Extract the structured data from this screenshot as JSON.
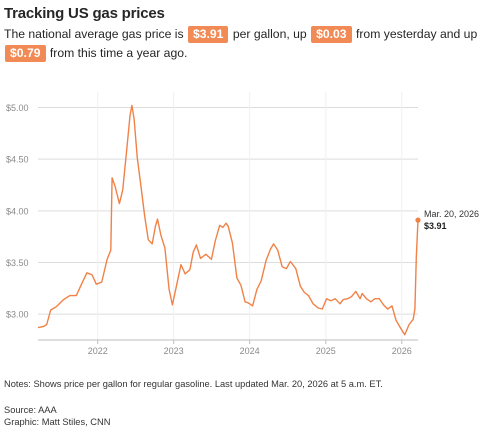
{
  "header": {
    "title": "Tracking US gas prices",
    "subtitle_part1": "The national average gas price is",
    "price_pill": "$3.91",
    "subtitle_part2": "per gallon, up",
    "day_change_pill": "$0.03",
    "subtitle_part3": "from yesterday and up",
    "year_change_pill": "$0.79",
    "subtitle_part4": "from this time a year ago."
  },
  "colors": {
    "accent": "#f18a55",
    "line": "#f08247",
    "grid": "#dddddd",
    "axis_text": "#8a8a8a"
  },
  "chart_data": {
    "type": "line",
    "title": "Tracking US gas prices",
    "xlabel": "",
    "ylabel": "",
    "xlim": [
      "2021-03-20",
      "2026-03-20"
    ],
    "ylim": [
      2.75,
      5.15
    ],
    "x_ticks": [
      "2022",
      "2023",
      "2024",
      "2025",
      "2026"
    ],
    "y_ticks": [
      "$3.00",
      "$3.50",
      "$4.00",
      "$4.50",
      "$5.00"
    ],
    "y_tick_values": [
      3.0,
      3.5,
      4.0,
      4.5,
      5.0
    ],
    "grid": true,
    "series": [
      {
        "x": [
          "2021-03-20",
          "2021-04-15",
          "2021-05-01",
          "2021-05-20",
          "2021-06-15",
          "2021-07-20",
          "2021-08-20",
          "2021-09-20",
          "2021-10-15",
          "2021-11-10",
          "2021-12-05",
          "2021-12-25",
          "2022-01-20",
          "2022-02-15",
          "2022-03-05",
          "2022-03-11",
          "2022-03-25",
          "2022-04-15",
          "2022-05-01",
          "2022-05-20",
          "2022-06-05",
          "2022-06-14",
          "2022-06-25",
          "2022-07-10",
          "2022-07-25",
          "2022-08-15",
          "2022-09-01",
          "2022-09-20",
          "2022-10-05",
          "2022-10-15",
          "2022-11-01",
          "2022-11-20",
          "2022-12-10",
          "2022-12-26",
          "2023-01-15",
          "2023-02-05",
          "2023-02-25",
          "2023-03-20",
          "2023-04-05",
          "2023-04-20",
          "2023-05-10",
          "2023-06-05",
          "2023-07-01",
          "2023-07-20",
          "2023-08-10",
          "2023-08-25",
          "2023-09-10",
          "2023-09-20",
          "2023-10-10",
          "2023-11-01",
          "2023-11-20",
          "2023-12-10",
          "2023-12-25",
          "2024-01-15",
          "2024-02-05",
          "2024-02-25",
          "2024-03-20",
          "2024-04-10",
          "2024-04-25",
          "2024-05-15",
          "2024-06-05",
          "2024-06-25",
          "2024-07-15",
          "2024-08-10",
          "2024-09-01",
          "2024-09-20",
          "2024-10-10",
          "2024-11-01",
          "2024-11-25",
          "2024-12-15",
          "2025-01-05",
          "2025-01-25",
          "2025-02-15",
          "2025-03-10",
          "2025-03-25",
          "2025-04-15",
          "2025-05-05",
          "2025-05-25",
          "2025-06-15",
          "2025-06-25",
          "2025-07-15",
          "2025-08-05",
          "2025-08-25",
          "2025-09-15",
          "2025-10-05",
          "2025-10-25",
          "2025-11-15",
          "2025-12-05",
          "2025-12-25",
          "2026-01-15",
          "2026-02-05",
          "2026-02-25",
          "2026-03-05",
          "2026-03-12",
          "2026-03-20"
        ],
        "values": [
          2.87,
          2.88,
          2.9,
          3.04,
          3.07,
          3.14,
          3.18,
          3.18,
          3.29,
          3.4,
          3.38,
          3.29,
          3.31,
          3.53,
          3.62,
          4.32,
          4.24,
          4.07,
          4.2,
          4.59,
          4.92,
          5.02,
          4.89,
          4.51,
          4.28,
          3.94,
          3.72,
          3.68,
          3.85,
          3.92,
          3.76,
          3.64,
          3.24,
          3.09,
          3.28,
          3.48,
          3.39,
          3.43,
          3.6,
          3.67,
          3.54,
          3.58,
          3.53,
          3.71,
          3.86,
          3.84,
          3.88,
          3.85,
          3.69,
          3.35,
          3.28,
          3.12,
          3.11,
          3.08,
          3.24,
          3.32,
          3.52,
          3.63,
          3.68,
          3.62,
          3.46,
          3.44,
          3.51,
          3.44,
          3.27,
          3.21,
          3.18,
          3.1,
          3.06,
          3.05,
          3.15,
          3.13,
          3.15,
          3.1,
          3.14,
          3.15,
          3.17,
          3.22,
          3.15,
          3.2,
          3.15,
          3.12,
          3.15,
          3.15,
          3.09,
          3.05,
          3.08,
          2.94,
          2.87,
          2.8,
          2.9,
          2.95,
          3.05,
          3.55,
          3.91
        ]
      }
    ],
    "annotation": {
      "date_label": "Mar. 20, 2026",
      "value_label": "$3.91"
    }
  },
  "footer": {
    "notes": "Notes: Shows price per gallon for regular gasoline. Last updated Mar. 20, 2026 at 5 a.m. ET.",
    "source": "Source: AAA",
    "graphic": "Graphic: Matt Stiles, CNN"
  }
}
